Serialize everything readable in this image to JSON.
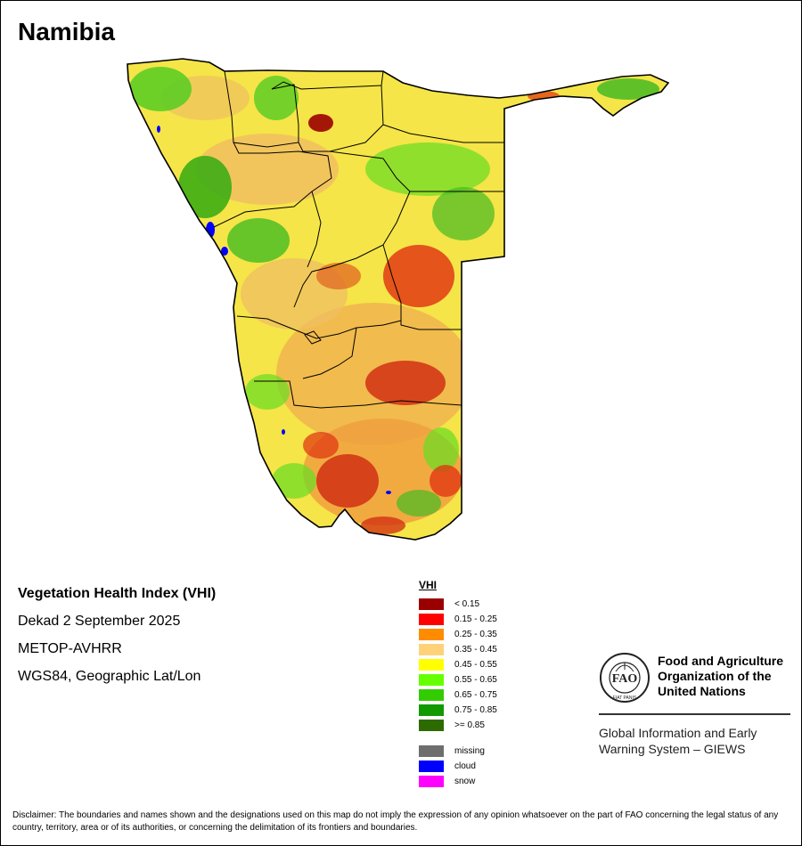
{
  "map": {
    "title": "Namibia",
    "colors": {
      "border": "#000000",
      "land_base": "#f7e34a"
    }
  },
  "info": {
    "index_name": "Vegetation Health Index (VHI)",
    "period": "Dekad 2 September 2025",
    "sensor": "METOP-AVHRR",
    "projection": "WGS84, Geographic Lat/Lon"
  },
  "legend": {
    "title": "VHI",
    "classes": [
      {
        "label": "< 0.15",
        "color": "#9b0000"
      },
      {
        "label": "0.15 - 0.25",
        "color": "#ff0000"
      },
      {
        "label": "0.25 - 0.35",
        "color": "#ff8c00"
      },
      {
        "label": "0.35 - 0.45",
        "color": "#ffd27a"
      },
      {
        "label": "0.45 - 0.55",
        "color": "#ffff00"
      },
      {
        "label": "0.55 - 0.65",
        "color": "#66ff00"
      },
      {
        "label": "0.65 - 0.75",
        "color": "#33cc00"
      },
      {
        "label": "0.75 - 0.85",
        "color": "#119900"
      },
      {
        "label": ">= 0.85",
        "color": "#2d6b00"
      }
    ],
    "other": [
      {
        "label": "missing",
        "color": "#6e6e6e"
      },
      {
        "label": "cloud",
        "color": "#0000ff"
      },
      {
        "label": "snow",
        "color": "#ff00ff"
      }
    ]
  },
  "org": {
    "name_line1": "Food and Agriculture",
    "name_line2": "Organization of the",
    "name_line3": "United Nations",
    "giews_line1": "Global Information and Early",
    "giews_line2": "Warning System – GIEWS",
    "logo_text": "FAO",
    "logo_motto": "FIAT PANIS"
  },
  "disclaimer": "Disclaimer: The boundaries and names shown and the designations used on this map do not imply the expression of any opinion whatsoever on the part of FAO concerning the legal status of any country, territory, area or of its authorities, or concerning the delimitation of its frontiers and boundaries."
}
